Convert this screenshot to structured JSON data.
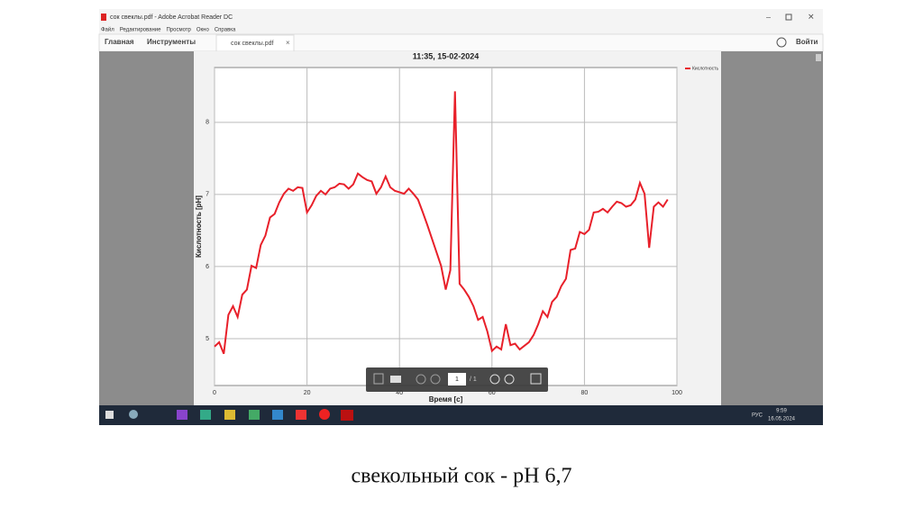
{
  "window": {
    "title": "сок свеклы.pdf - Adobe Acrobat Reader DC"
  },
  "menu": [
    "Файл",
    "Редактирование",
    "Просмотр",
    "Окно",
    "Справка"
  ],
  "toolbar": {
    "home": "Главная",
    "tools": "Инструменты",
    "tab": "сок свеклы.pdf",
    "signin": "Войти",
    "page": "1",
    "pages": "/ 1"
  },
  "chart_data": {
    "type": "line",
    "title": "11:35, 15-02-2024",
    "x_label": "Время [с]",
    "y_label": "Кислотность [pH]",
    "x": [
      0,
      1,
      2,
      3,
      4,
      5,
      6,
      7,
      8,
      9,
      10,
      11,
      12,
      13,
      14,
      15,
      16,
      17,
      18,
      19,
      20,
      21,
      22,
      23,
      24,
      25,
      26,
      27,
      28,
      29,
      30,
      31,
      32,
      33,
      34,
      35,
      36,
      37,
      38,
      39,
      40,
      41,
      42,
      43,
      44,
      45,
      46,
      47,
      48,
      49,
      50,
      51,
      52,
      53,
      54,
      55,
      56,
      57,
      58,
      59,
      60,
      61,
      62,
      63,
      64,
      65,
      66,
      67,
      68,
      69,
      70,
      71,
      72,
      73,
      74,
      75,
      76,
      77,
      78,
      79,
      80,
      81,
      82,
      83,
      84,
      85,
      86,
      87,
      88,
      89,
      90,
      91,
      92,
      93,
      94,
      95,
      96,
      97,
      98
    ],
    "series": [
      {
        "name": "Кислотность",
        "color": "#e8202a",
        "values": [
          4.89,
          4.95,
          4.79,
          5.33,
          5.45,
          5.3,
          5.61,
          5.68,
          6.01,
          5.98,
          6.3,
          6.43,
          6.68,
          6.73,
          6.89,
          7.01,
          7.08,
          7.05,
          7.1,
          7.09,
          6.75,
          6.85,
          6.98,
          7.05,
          7.0,
          7.08,
          7.1,
          7.15,
          7.14,
          7.08,
          7.14,
          7.29,
          7.24,
          7.2,
          7.18,
          7.01,
          7.1,
          7.25,
          7.1,
          7.05,
          7.03,
          7.01,
          7.08,
          7.01,
          6.93,
          6.76,
          6.58,
          6.39,
          6.2,
          6.01,
          5.68,
          5.95,
          8.43,
          5.76,
          5.68,
          5.58,
          5.45,
          5.26,
          5.3,
          5.1,
          4.83,
          4.89,
          4.85,
          5.2,
          4.91,
          4.93,
          4.85,
          4.9,
          4.95,
          5.05,
          5.2,
          5.38,
          5.3,
          5.51,
          5.58,
          5.73,
          5.83,
          6.23,
          6.25,
          6.48,
          6.45,
          6.51,
          6.75,
          6.76,
          6.8,
          6.75,
          6.83,
          6.9,
          6.88,
          6.83,
          6.85,
          6.93,
          7.16,
          7.01,
          6.26,
          6.83,
          6.89,
          6.83,
          6.93
        ]
      }
    ],
    "xlim": [
      0,
      100
    ],
    "xticks": [
      0,
      20,
      40,
      60,
      80,
      100
    ],
    "ylim": [
      4.35,
      8.76
    ],
    "yticks": [
      5,
      6,
      7,
      8
    ],
    "grid": true,
    "legend": "top-right"
  },
  "taskbar": {
    "lang": "РУС",
    "time": "9:59",
    "date": "16.05.2024"
  },
  "caption": "свекольный сок - pH  6,7"
}
